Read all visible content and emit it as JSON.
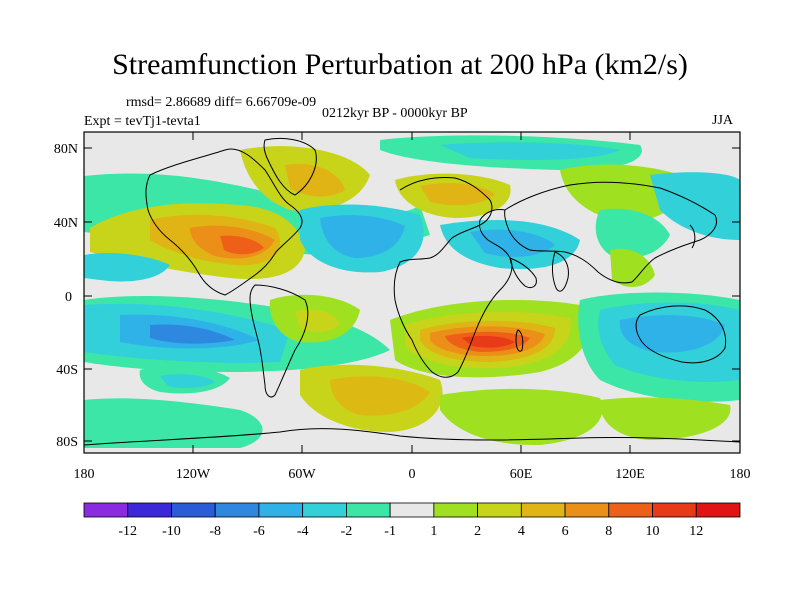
{
  "title": "Streamfunction Perturbation at 200 hPa (km2/s)",
  "stats": "rmsd= 2.86689  diff= 6.66709e-09",
  "experiment": "Expt = tevTj1-tevta1",
  "period": "0212kyr BP - 0000kyr BP",
  "season": "JJA",
  "axes": {
    "x_labels": [
      "180",
      "120W",
      "60W",
      "0",
      "60E",
      "120E",
      "180"
    ],
    "y_labels": [
      "80N",
      "40N",
      "0",
      "40S",
      "80S"
    ]
  },
  "colorbar": {
    "labels": [
      "-12",
      "-10",
      "-8",
      "-6",
      "-4",
      "-2",
      "-1",
      "1",
      "2",
      "4",
      "6",
      "8",
      "10",
      "12"
    ],
    "colors": [
      "#8a2be2",
      "#3c28d8",
      "#2a5cd8",
      "#2e88e0",
      "#2fb2e8",
      "#32d0d8",
      "#3ce6a6",
      "#e8e8e8",
      "#9fe020",
      "#c8d41a",
      "#e0b414",
      "#ec8f18",
      "#ee6018",
      "#e83a16",
      "#e01414"
    ]
  }
}
